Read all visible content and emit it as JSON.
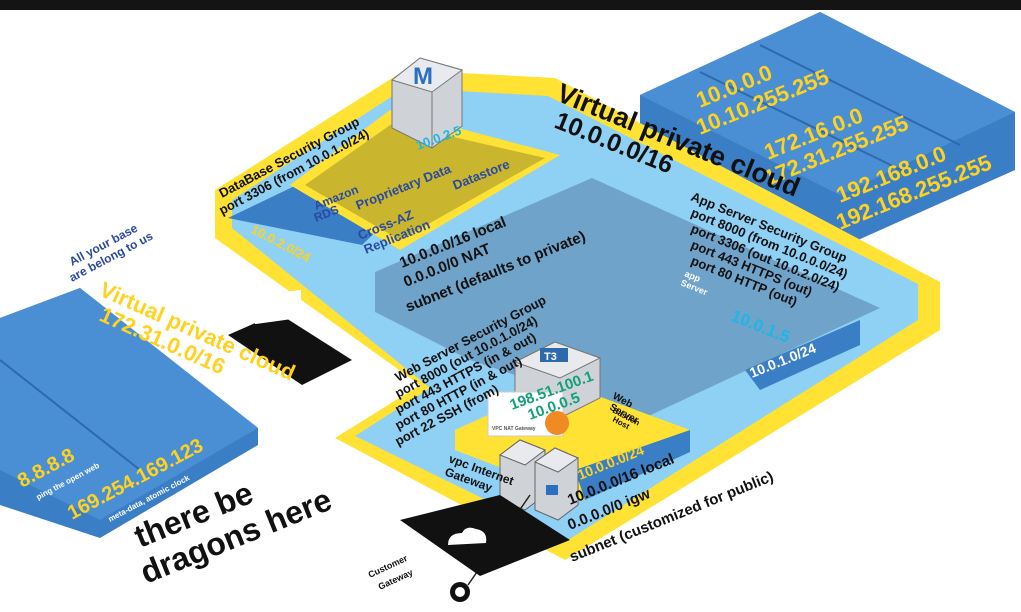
{
  "colors": {
    "yellow": "#ffe233",
    "vpc_light": "#8fd0f5",
    "subnet_blue": "#3a7ec6",
    "private_area": "#6fa3c9",
    "olive": "#c9b52e",
    "label_yellow": "#ffd21f",
    "ip_cyan": "#1fb6e6",
    "ip_green": "#12a07a",
    "dark": "#111111"
  },
  "main_vpc": {
    "title": "Virtual private cloud",
    "cidr": "10.0.0.0/16"
  },
  "private_ranges": {
    "range1_start": "10.0.0.0",
    "range1_end": "10.10.255.255",
    "range2_start": "172.16.0.0",
    "range2_end": "172.31.255.255",
    "range3_start": "192.168.0.0",
    "range3_end": "192.168.255.255"
  },
  "db_security_group": {
    "title": "DataBase Security Group",
    "rule": "port 3306 (from 10.0.1.0/24)"
  },
  "db_subnet": {
    "cidr": "10.0.2.0/24",
    "rds_label_1": "Amazon",
    "rds_label_2": "RDS",
    "proprietary": "Proprietary Data",
    "datastore": "Datastore",
    "cross_az_1": "Cross-AZ",
    "cross_az_2": "Replication",
    "master_letter": "M",
    "master_ip": "10.0.2.5"
  },
  "private_subnet": {
    "route1": "10.0.0.0/16 local",
    "route2": "0.0.0.0/0 NAT",
    "desc": "subnet (defaults to private)"
  },
  "app_security_group": {
    "title": "App Server Security Group",
    "rule1": "port 8000 (from 10.0.0.0/24)",
    "rule2": "port 3306 (out 10.0.2.0/24)",
    "rule3": "port 443 HTTPS (out)",
    "rule4": "port 80 HTTP (out)"
  },
  "app_server": {
    "label_1": "app",
    "label_2": "Server",
    "ip": "10.0.1.5",
    "subnet": "10.0.1.0/24"
  },
  "web_security_group": {
    "title": "Web Server Security Group",
    "rule1": "port 8000 (out 10.0.1.0/24)",
    "rule2": "port 443 HTTPS (in & out)",
    "rule3": "port 80 HTTP (in & out)",
    "rule4": "port 22 SSH (from)"
  },
  "web_server": {
    "instance": "T3",
    "public_ip": "198.51.100.1",
    "private_ip": "10.0.0.5",
    "label_1": "Web",
    "label_2": "Server",
    "bastion_1": "Bastion",
    "bastion_2": "Host",
    "nat_gateway": "VPC NAT Gateway"
  },
  "public_subnet": {
    "cidr": "10.0.0.0/24",
    "route1": "10.0.0.0/16 local",
    "route2": "0.0.0.0/0 igw",
    "desc": "subnet (customized for public)"
  },
  "igw": {
    "label_1": "vpc Internet",
    "label_2": "Gateway"
  },
  "customer_gateway": {
    "label_1": "Customer",
    "label_2": "Gateway"
  },
  "all_your_base": {
    "line1": "All your base",
    "line2": "are belong to us"
  },
  "peer_vpc": {
    "title": "Virtual private cloud",
    "cidr": "172.31.0.0/16"
  },
  "external": {
    "dns_ip": "8.8.8.8",
    "dns_desc": "ping the open web",
    "meta_ip": "169.254.169.123",
    "meta_desc": "meta-data, atomic clock"
  },
  "dragons": {
    "line1": "there be",
    "line2": "dragons here"
  }
}
